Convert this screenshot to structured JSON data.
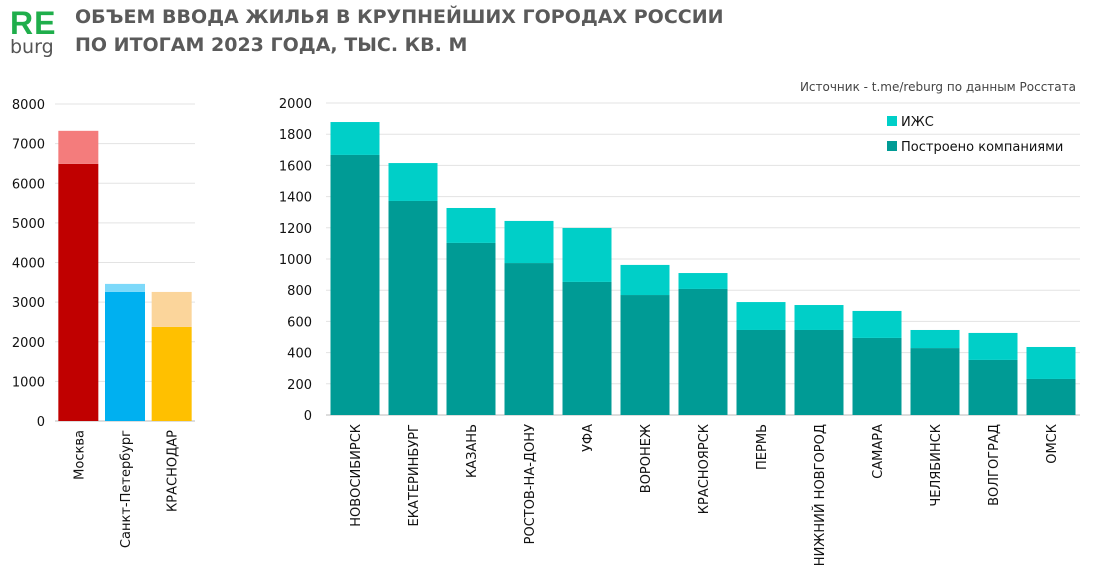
{
  "logo": {
    "top": "RE",
    "bottom": "burg"
  },
  "title_line1": "ОБЪЕМ ВВОДА ЖИЛЬЯ В КРУПНЕЙШИХ ГОРОДАХ РОССИИ",
  "title_line2": "ПО ИТОГАМ 2023 ГОДА, ТЫС. КВ. М",
  "source": "Источник - t.me/reburg по данным Росстата",
  "chart_data": [
    {
      "type": "bar",
      "stacked": true,
      "categories": [
        "Москва",
        "Санкт-Петербург",
        "КРАСНОДАР"
      ],
      "series": [
        {
          "name": "Построено компаниями",
          "values": [
            6490,
            3257,
            2374
          ],
          "colors": [
            "#c00000",
            "#00b0f0",
            "#ffc000"
          ]
        },
        {
          "name": "ИЖС",
          "values": [
            833,
            203,
            883
          ],
          "colors": [
            "#f47c7c",
            "#7dd9fa",
            "#fbd59b"
          ]
        }
      ],
      "ylim": [
        0,
        8000
      ],
      "yticks": [
        0,
        1000,
        2000,
        3000,
        4000,
        5000,
        6000,
        7000,
        8000
      ],
      "grid": true
    },
    {
      "type": "bar",
      "stacked": true,
      "categories": [
        "НОВОСИБИРСК",
        "ЕКАТЕРИНБУРГ",
        "КАЗАНЬ",
        "РОСТОВ-НА-ДОНУ",
        "УФА",
        "ВОРОНЕЖ",
        "КРАСНОЯРСК",
        "ПЕРМЬ",
        "НИЖНИЙ НОВГОРОД",
        "САМАРА",
        "ЧЕЛЯБИНСК",
        "ВОЛГОГРАД",
        "ОМСК"
      ],
      "series": [
        {
          "name": "Построено компаниями",
          "color": "#009b95",
          "values": [
            1667,
            1372,
            1103,
            974,
            853,
            769,
            808,
            545,
            545,
            494,
            429,
            353,
            231
          ]
        },
        {
          "name": "ИЖС",
          "color": "#00cfc8",
          "values": [
            211,
            243,
            224,
            270,
            346,
            193,
            102,
            179,
            160,
            173,
            116,
            173,
            205
          ]
        }
      ],
      "ylim": [
        0,
        2000
      ],
      "yticks": [
        0,
        200,
        400,
        600,
        800,
        1000,
        1200,
        1400,
        1600,
        1800,
        2000
      ],
      "legend": {
        "placement": "top-right",
        "entries": [
          "ИЖС",
          "Построено компаниями"
        ]
      },
      "grid": true
    }
  ]
}
